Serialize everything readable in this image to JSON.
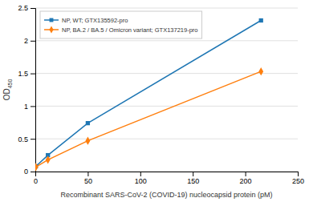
{
  "chart_data": {
    "type": "line",
    "x_label": "Recombinant SARS-CoV-2 (COVID-19) nucleocapsid protein (pM)",
    "y_label": "OD",
    "y_label_sub": "450",
    "x": [
      0.5,
      12,
      50,
      215
    ],
    "series": [
      {
        "name": "NP, WT; GTX135592-pro",
        "marker": "square",
        "values": [
          0.08,
          0.25,
          0.74,
          2.31
        ]
      },
      {
        "name": "NP, BA.2 / BA.5 / Omicron variant; GTX137219-pro",
        "marker": "diamond",
        "values": [
          0.07,
          0.18,
          0.47,
          1.53
        ]
      }
    ],
    "xlim": [
      0,
      250
    ],
    "ylim": [
      0,
      2.5
    ],
    "xticks": [
      0,
      50,
      100,
      150,
      200,
      250
    ],
    "yticks": [
      0,
      0.5,
      1,
      1.5,
      2,
      2.5
    ],
    "grid": true,
    "legend": "upper left"
  }
}
